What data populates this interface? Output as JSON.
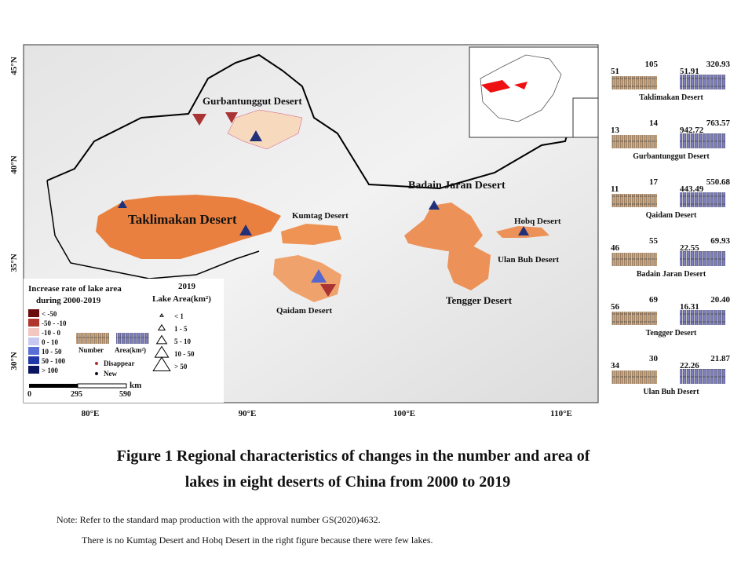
{
  "map": {
    "lat_labels": [
      "45°N",
      "40°N",
      "35°N",
      "30°N"
    ],
    "lon_labels": [
      "80°E",
      "90°E",
      "100°E",
      "110°E"
    ],
    "desert_labels": [
      "Gurbantunggut Desert",
      "Taklimakan Desert",
      "Kumtag Desert",
      "Badain Jaran Desert",
      "Hobq Desert",
      "Ulan Buh Desert",
      "Tengger Desert",
      "Qaidam Desert"
    ],
    "legend": {
      "rate_title": [
        "Increase rate of lake area",
        "during 2000-2019"
      ],
      "classes": [
        {
          "label": "< -50",
          "color": "#6b0c0c"
        },
        {
          "label": "-50 - -10",
          "color": "#b0352a"
        },
        {
          "label": "-10 - 0",
          "color": "#f4c6c0"
        },
        {
          "label": "0 - 10",
          "color": "#c7c7f0"
        },
        {
          "label": "10 - 50",
          "color": "#5a6fd6"
        },
        {
          "label": "50 - 100",
          "color": "#2238a8"
        },
        {
          "label": "> 100",
          "color": "#0c1560"
        }
      ],
      "number": "Number",
      "area": "Area(km²)",
      "disappear": "Disappear",
      "new": "New",
      "area_title": [
        "2019",
        "Lake Area(km²)"
      ],
      "sizes": [
        "< 1",
        "1 - 5",
        "5 - 10",
        "10 - 50",
        "> 50"
      ]
    },
    "scale": [
      "0",
      "295",
      "590",
      "km"
    ]
  },
  "panels": [
    {
      "name": "Taklimakan Desert",
      "number": [
        "51",
        "105"
      ],
      "area": [
        "51.91",
        "320.93"
      ]
    },
    {
      "name": "Gurbantunggut Desert",
      "number": [
        "13",
        "14"
      ],
      "area": [
        "942.72",
        "763.57"
      ]
    },
    {
      "name": "Qaidam Desert",
      "number": [
        "11",
        "17"
      ],
      "area": [
        "443.49",
        "550.68"
      ]
    },
    {
      "name": "Badain Jaran Desert",
      "number": [
        "46",
        "55"
      ],
      "area": [
        "22.55",
        "69.93"
      ]
    },
    {
      "name": "Tengger Desert",
      "number": [
        "56",
        "69"
      ],
      "area": [
        "16.31",
        "20.40"
      ]
    },
    {
      "name": "Ulan Buh Desert",
      "number": [
        "34",
        "30"
      ],
      "area": [
        "22.26",
        "21.87"
      ]
    }
  ],
  "caption": [
    "Figure 1  Regional characteristics of changes in the number and area of",
    "lakes in eight deserts of China from 2000 to 2019"
  ],
  "notes": [
    "Note: Refer to the standard map production with the approval number GS(2020)4632.",
    "There is no Kumtag Desert and Hobq Desert in the right figure because there were few lakes."
  ]
}
